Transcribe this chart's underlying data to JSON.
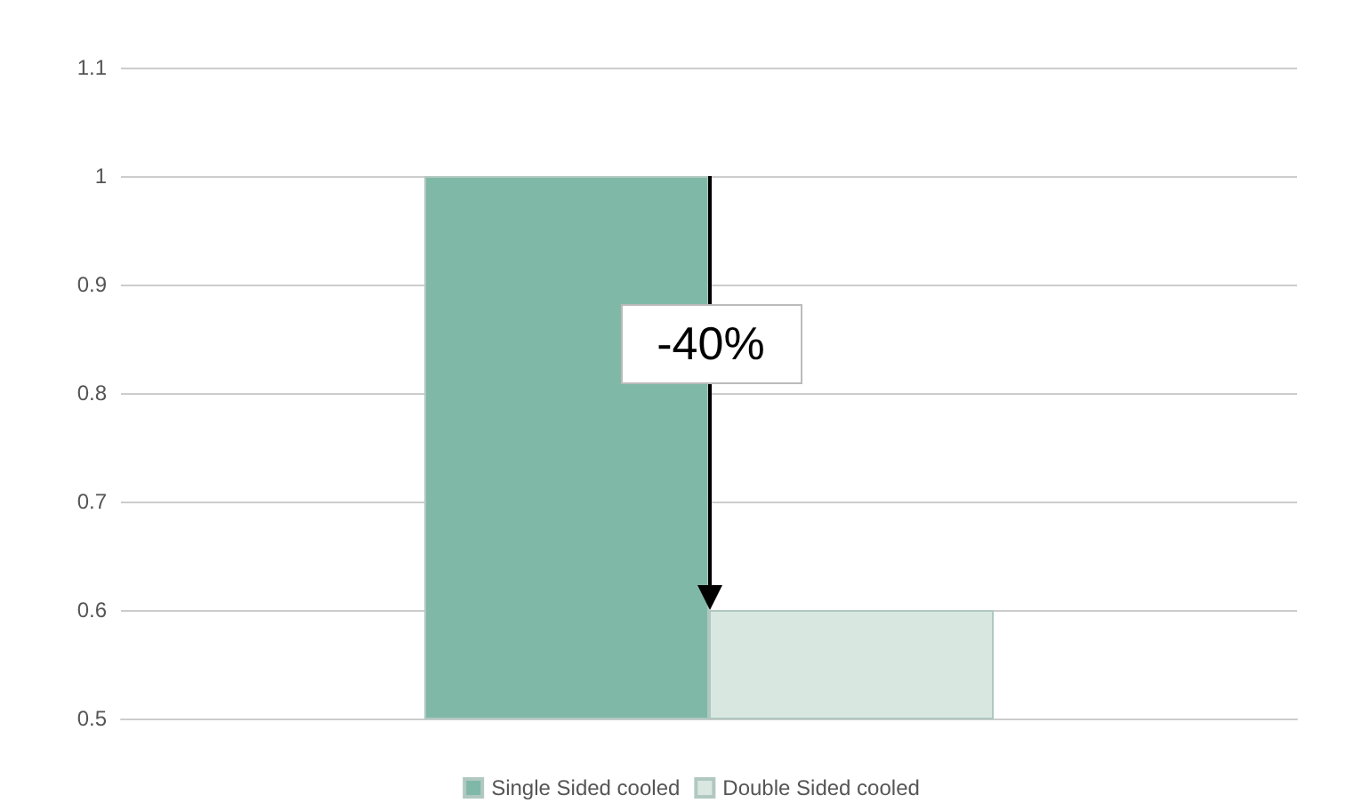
{
  "chart_data": {
    "type": "bar",
    "categories": [
      null
    ],
    "series": [
      {
        "name": "Single Sided cooled",
        "color": "#80b8a8",
        "values": [
          1.0
        ]
      },
      {
        "name": "Double Sided cooled",
        "color": "#d8e8e0",
        "values": [
          0.6
        ]
      }
    ],
    "ylim": [
      0.5,
      1.1
    ],
    "yticks": [
      0.5,
      0.6,
      0.7,
      0.8,
      0.9,
      1,
      1.1
    ],
    "grid": "y",
    "legend": "bottom",
    "annotations": [
      "-40%"
    ]
  }
}
